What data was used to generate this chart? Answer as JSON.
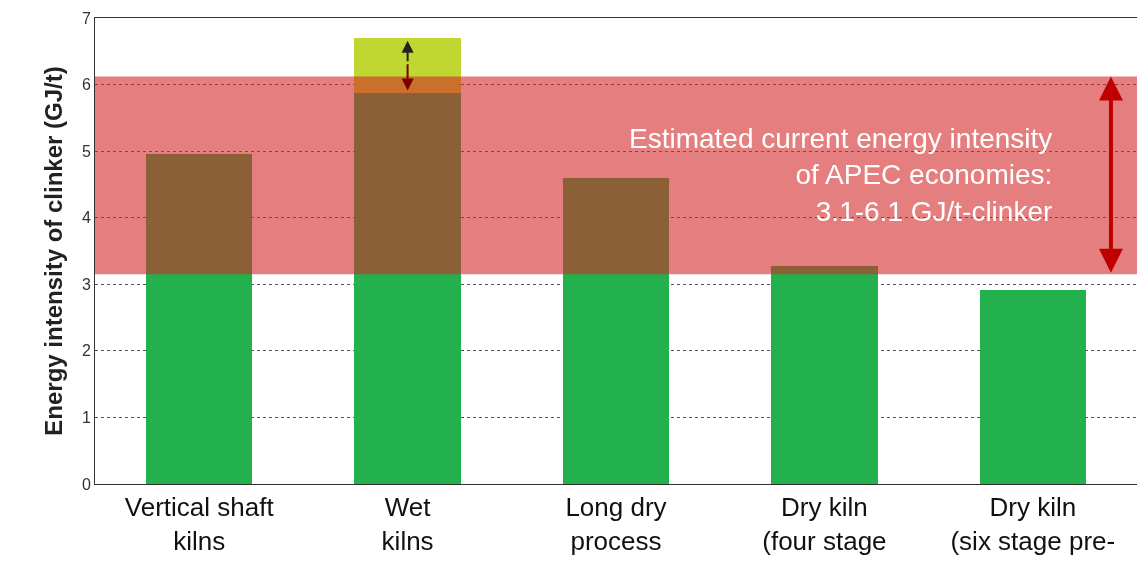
{
  "chart_data": {
    "type": "bar",
    "ylabel": "Energy intensity of clinker (GJ/t)",
    "categories": [
      "Vertical shaft\nkilns",
      "Wet\nkilns",
      "Long dry\nprocess",
      "Dry kiln\n(four stage",
      "Dry kiln\n(six stage pre-"
    ],
    "series": [
      {
        "color": "#22b14c",
        "values": [
          4.96,
          5.87,
          4.59,
          3.27,
          2.91
        ]
      },
      {
        "color": "#bfd730",
        "values": [
          0,
          0.83,
          0,
          0,
          0
        ]
      }
    ],
    "stacked": true,
    "ylim": [
      0,
      7
    ],
    "yticks": [
      0,
      1,
      2,
      3,
      4,
      5,
      6,
      7
    ],
    "grid": "y",
    "bands": [
      {
        "axis": "y",
        "from": 3.15,
        "to": 6.12,
        "color": "#d42a2a",
        "label": "Estimated current energy intensity\nof APEC economies:\n3.1-6.1 GJ/t-clinker"
      }
    ]
  }
}
